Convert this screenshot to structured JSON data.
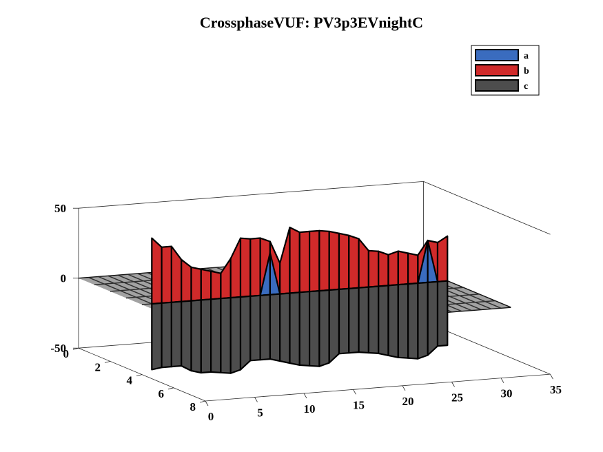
{
  "chart_data": {
    "type": "surface3d",
    "title": "CrossphaseVUF: PV3p3EVnightC",
    "zlim": [
      -50,
      50
    ],
    "xlim": [
      0,
      35
    ],
    "ylim": [
      0,
      8
    ],
    "z_ticks": [
      "50",
      "0",
      "-50"
    ],
    "x_ticks": [
      "0",
      "5",
      "10",
      "15",
      "20",
      "25",
      "30",
      "35"
    ],
    "y_ticks": [
      "0",
      "2",
      "4",
      "6",
      "8"
    ],
    "legend_position": "top-right",
    "grid": false,
    "series": [
      {
        "name": "a",
        "color": "#3a6cbf",
        "x": [
          1,
          2,
          3,
          4,
          5,
          6,
          7,
          8,
          9,
          10,
          11,
          12,
          13,
          14,
          15,
          16,
          17,
          18,
          19,
          20,
          21,
          22,
          23,
          24,
          25,
          26,
          27,
          28,
          29,
          30,
          31
        ],
        "values": [
          0,
          0,
          0,
          0,
          0,
          0,
          0,
          0,
          0,
          0,
          0,
          0,
          30,
          0,
          0,
          0,
          0,
          0,
          0,
          0,
          0,
          0,
          0,
          0,
          0,
          0,
          0,
          0,
          30,
          0,
          0
        ]
      },
      {
        "name": "b",
        "color": "#d02a2a",
        "x": [
          1,
          2,
          3,
          4,
          5,
          6,
          7,
          8,
          9,
          10,
          11,
          12,
          13,
          14,
          15,
          16,
          17,
          18,
          19,
          20,
          21,
          22,
          23,
          24,
          25,
          26,
          27,
          28,
          29,
          30,
          31
        ],
        "values": [
          47,
          40,
          40,
          30,
          24,
          22,
          20,
          18,
          28,
          42,
          41,
          41,
          38,
          22,
          47,
          43,
          43,
          43,
          42,
          40,
          38,
          35,
          26,
          25,
          22,
          24,
          22,
          20,
          30,
          28,
          32
        ]
      },
      {
        "name": "c",
        "color": "#4d4d4d",
        "x": [
          1,
          2,
          3,
          4,
          5,
          6,
          7,
          8,
          9,
          10,
          11,
          12,
          13,
          14,
          15,
          16,
          17,
          18,
          19,
          20,
          21,
          22,
          23,
          24,
          25,
          26,
          27,
          28,
          29,
          30,
          31
        ],
        "values": [
          -47,
          -46,
          -46,
          -46,
          -50,
          -52,
          -52,
          -53,
          -54,
          -52,
          -46,
          -46,
          -46,
          -48,
          -50,
          -52,
          -53,
          -54,
          -52,
          -46,
          -46,
          -46,
          -47,
          -48,
          -50,
          -52,
          -53,
          -54,
          -52,
          -46,
          -46
        ]
      }
    ]
  }
}
